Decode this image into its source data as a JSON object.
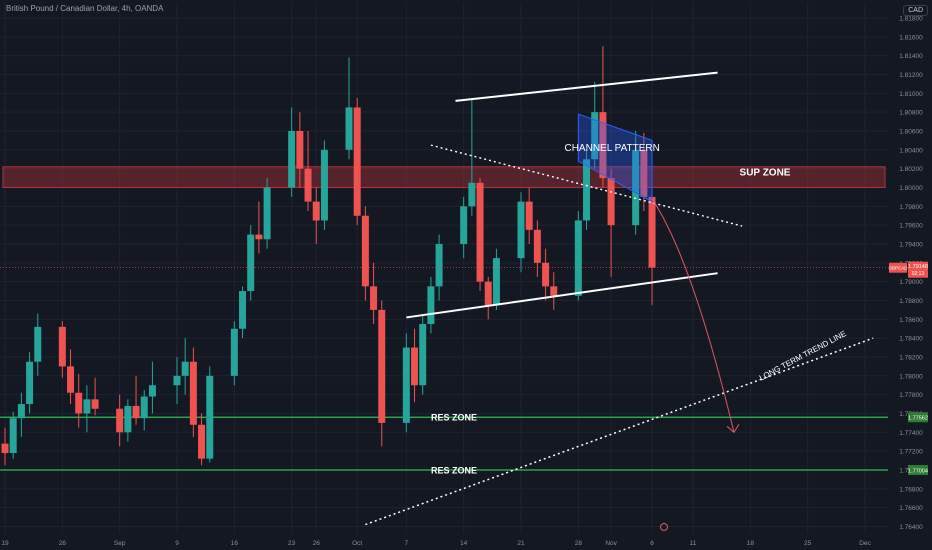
{
  "header": {
    "title": "British Pound / Canadian Dollar, 4h, OANDA",
    "currency_button": "CAD"
  },
  "colors": {
    "background": "#141823",
    "grid": "#1e2330",
    "up": "#26a69a",
    "down": "#ef5350",
    "sup_zone": "#b2323a",
    "res_line": "#2fbf56",
    "annotation": "#ffffff",
    "price_badge": "#ef5350",
    "res_badge": "#2e7d32"
  },
  "chart_data": {
    "type": "candlestick",
    "title": "British Pound / Canadian Dollar, 4h, OANDA",
    "currency": "CAD",
    "y_ticks": [
      "1.81800",
      "1.81600",
      "1.81400",
      "1.81200",
      "1.81000",
      "1.80800",
      "1.80600",
      "1.80400",
      "1.80200",
      "1.80000",
      "1.79800",
      "1.79600",
      "1.79400",
      "1.79200",
      "1.79000",
      "1.78800",
      "1.78600",
      "1.78400",
      "1.78200",
      "1.78000",
      "1.77800",
      "1.77600",
      "1.77400",
      "1.77200",
      "1.77000",
      "1.76800",
      "1.76600",
      "1.76400"
    ],
    "x_ticks": [
      "19",
      "26",
      "Sep",
      "9",
      "16",
      "23",
      "26",
      "Oct",
      "7",
      "14",
      "21",
      "28",
      "Nov",
      "6",
      "11",
      "18",
      "25",
      "Dec"
    ],
    "ylim": [
      1.7632,
      1.8197
    ],
    "current_price": "1.79148",
    "current_price_time": "02:13",
    "gbpcad_badge": "GBPCAD",
    "candles": [
      {
        "d": "2024-08-19",
        "o": 1.7728,
        "h": 1.7745,
        "l": 1.7705,
        "c": 1.7718
      },
      {
        "d": "2024-08-20",
        "o": 1.7718,
        "h": 1.7762,
        "l": 1.7712,
        "c": 1.7755
      },
      {
        "d": "2024-08-21",
        "o": 1.7755,
        "h": 1.7782,
        "l": 1.7735,
        "c": 1.777
      },
      {
        "d": "2024-08-22",
        "o": 1.777,
        "h": 1.7825,
        "l": 1.776,
        "c": 1.7815
      },
      {
        "d": "2024-08-23",
        "o": 1.7815,
        "h": 1.7866,
        "l": 1.78,
        "c": 1.7852
      },
      {
        "d": "2024-08-26",
        "o": 1.7852,
        "h": 1.7858,
        "l": 1.7798,
        "c": 1.781
      },
      {
        "d": "2024-08-27",
        "o": 1.781,
        "h": 1.7828,
        "l": 1.777,
        "c": 1.7782
      },
      {
        "d": "2024-08-28",
        "o": 1.7782,
        "h": 1.7802,
        "l": 1.7745,
        "c": 1.776
      },
      {
        "d": "2024-08-29",
        "o": 1.776,
        "h": 1.779,
        "l": 1.774,
        "c": 1.7775
      },
      {
        "d": "2024-08-30",
        "o": 1.7775,
        "h": 1.7798,
        "l": 1.7758,
        "c": 1.7765
      },
      {
        "d": "2024-09-02",
        "o": 1.7765,
        "h": 1.778,
        "l": 1.7725,
        "c": 1.774
      },
      {
        "d": "2024-09-03",
        "o": 1.774,
        "h": 1.7775,
        "l": 1.773,
        "c": 1.7768
      },
      {
        "d": "2024-09-04",
        "o": 1.7768,
        "h": 1.78,
        "l": 1.7748,
        "c": 1.7755
      },
      {
        "d": "2024-09-05",
        "o": 1.7755,
        "h": 1.7785,
        "l": 1.7742,
        "c": 1.7778
      },
      {
        "d": "2024-09-06",
        "o": 1.7778,
        "h": 1.7815,
        "l": 1.776,
        "c": 1.779
      },
      {
        "d": "2024-09-09",
        "o": 1.779,
        "h": 1.782,
        "l": 1.777,
        "c": 1.78
      },
      {
        "d": "2024-09-10",
        "o": 1.78,
        "h": 1.784,
        "l": 1.778,
        "c": 1.7815
      },
      {
        "d": "2024-09-11",
        "o": 1.7815,
        "h": 1.783,
        "l": 1.7735,
        "c": 1.7748
      },
      {
        "d": "2024-09-12",
        "o": 1.7748,
        "h": 1.776,
        "l": 1.7705,
        "c": 1.7712
      },
      {
        "d": "2024-09-13",
        "o": 1.7712,
        "h": 1.781,
        "l": 1.7708,
        "c": 1.78
      },
      {
        "d": "2024-09-16",
        "o": 1.78,
        "h": 1.7858,
        "l": 1.779,
        "c": 1.785
      },
      {
        "d": "2024-09-17",
        "o": 1.785,
        "h": 1.7895,
        "l": 1.784,
        "c": 1.789
      },
      {
        "d": "2024-09-18",
        "o": 1.789,
        "h": 1.796,
        "l": 1.788,
        "c": 1.795
      },
      {
        "d": "2024-09-19",
        "o": 1.795,
        "h": 1.7985,
        "l": 1.793,
        "c": 1.7945
      },
      {
        "d": "2024-09-20",
        "o": 1.7945,
        "h": 1.801,
        "l": 1.7935,
        "c": 1.8
      },
      {
        "d": "2024-09-23",
        "o": 1.8,
        "h": 1.8085,
        "l": 1.799,
        "c": 1.806
      },
      {
        "d": "2024-09-24",
        "o": 1.806,
        "h": 1.808,
        "l": 1.8,
        "c": 1.802
      },
      {
        "d": "2024-09-25",
        "o": 1.802,
        "h": 1.806,
        "l": 1.7975,
        "c": 1.7985
      },
      {
        "d": "2024-09-26",
        "o": 1.7985,
        "h": 1.8,
        "l": 1.794,
        "c": 1.7965
      },
      {
        "d": "2024-09-27",
        "o": 1.7965,
        "h": 1.805,
        "l": 1.7955,
        "c": 1.804
      },
      {
        "d": "2024-09-30",
        "o": 1.804,
        "h": 1.8138,
        "l": 1.803,
        "c": 1.8085
      },
      {
        "d": "2024-10-01",
        "o": 1.8085,
        "h": 1.8095,
        "l": 1.796,
        "c": 1.797
      },
      {
        "d": "2024-10-02",
        "o": 1.797,
        "h": 1.798,
        "l": 1.788,
        "c": 1.7895
      },
      {
        "d": "2024-10-03",
        "o": 1.7895,
        "h": 1.792,
        "l": 1.7855,
        "c": 1.787
      },
      {
        "d": "2024-10-04",
        "o": 1.787,
        "h": 1.788,
        "l": 1.7725,
        "c": 1.775
      },
      {
        "d": "2024-10-07",
        "o": 1.775,
        "h": 1.7845,
        "l": 1.774,
        "c": 1.783
      },
      {
        "d": "2024-10-08",
        "o": 1.783,
        "h": 1.785,
        "l": 1.7772,
        "c": 1.779
      },
      {
        "d": "2024-10-09",
        "o": 1.779,
        "h": 1.7865,
        "l": 1.778,
        "c": 1.7855
      },
      {
        "d": "2024-10-10",
        "o": 1.7855,
        "h": 1.7905,
        "l": 1.7845,
        "c": 1.7895
      },
      {
        "d": "2024-10-11",
        "o": 1.7895,
        "h": 1.795,
        "l": 1.788,
        "c": 1.794
      },
      {
        "d": "2024-10-14",
        "o": 1.794,
        "h": 1.799,
        "l": 1.7925,
        "c": 1.798
      },
      {
        "d": "2024-10-15",
        "o": 1.798,
        "h": 1.8095,
        "l": 1.797,
        "c": 1.8005
      },
      {
        "d": "2024-10-16",
        "o": 1.8005,
        "h": 1.801,
        "l": 1.789,
        "c": 1.79
      },
      {
        "d": "2024-10-17",
        "o": 1.79,
        "h": 1.7905,
        "l": 1.786,
        "c": 1.7875
      },
      {
        "d": "2024-10-18",
        "o": 1.7875,
        "h": 1.7935,
        "l": 1.787,
        "c": 1.7925
      },
      {
        "d": "2024-10-21",
        "o": 1.7925,
        "h": 1.7995,
        "l": 1.791,
        "c": 1.7985
      },
      {
        "d": "2024-10-22",
        "o": 1.7985,
        "h": 1.8,
        "l": 1.794,
        "c": 1.7955
      },
      {
        "d": "2024-10-23",
        "o": 1.7955,
        "h": 1.7965,
        "l": 1.7905,
        "c": 1.792
      },
      {
        "d": "2024-10-24",
        "o": 1.792,
        "h": 1.7935,
        "l": 1.788,
        "c": 1.7895
      },
      {
        "d": "2024-10-25",
        "o": 1.7895,
        "h": 1.791,
        "l": 1.787,
        "c": 1.7885
      },
      {
        "d": "2024-10-28",
        "o": 1.7885,
        "h": 1.7975,
        "l": 1.788,
        "c": 1.7965
      },
      {
        "d": "2024-10-29",
        "o": 1.7965,
        "h": 1.804,
        "l": 1.7955,
        "c": 1.803
      },
      {
        "d": "2024-10-30",
        "o": 1.803,
        "h": 1.8112,
        "l": 1.802,
        "c": 1.808
      },
      {
        "d": "2024-10-31",
        "o": 1.808,
        "h": 1.815,
        "l": 1.8,
        "c": 1.801
      },
      {
        "d": "2024-11-01",
        "o": 1.801,
        "h": 1.802,
        "l": 1.7905,
        "c": 1.796
      },
      {
        "d": "2024-11-04",
        "o": 1.796,
        "h": 1.806,
        "l": 1.795,
        "c": 1.804
      },
      {
        "d": "2024-11-05",
        "o": 1.804,
        "h": 1.8058,
        "l": 1.7975,
        "c": 1.799
      },
      {
        "d": "2024-11-06",
        "o": 1.799,
        "h": 1.7995,
        "l": 1.7875,
        "c": 1.7915
      }
    ],
    "annotations": [
      {
        "label": "SUP ZONE",
        "type": "zone",
        "y_range": [
          1.8,
          1.8022
        ]
      },
      {
        "label": "RES ZONE",
        "type": "hline",
        "y": 1.7756,
        "badge": "1.77562"
      },
      {
        "label": "RES ZONE",
        "type": "hline",
        "y": 1.77,
        "badge": "1.77004"
      },
      {
        "label": "CHANNEL PATTERN",
        "type": "channel",
        "from": "2024-10-28",
        "to": "2024-11-06",
        "top": [
          1.8078,
          1.805
        ],
        "bottom": [
          1.8028,
          1.7985
        ]
      },
      {
        "label": "LONG TERM TREND LINE",
        "type": "trendline",
        "from": [
          "2024-10-02",
          1.7642
        ],
        "to": [
          "2024-12-03",
          1.784
        ]
      },
      {
        "label": "",
        "type": "trendline",
        "from": [
          "2024-10-07",
          1.7862
        ],
        "to": [
          "2024-11-14",
          1.7909
        ]
      },
      {
        "label": "",
        "type": "trendline",
        "from": [
          "2024-10-13",
          1.8092
        ],
        "to": [
          "2024-11-14",
          1.8122
        ]
      },
      {
        "label": "",
        "type": "trendline",
        "from": [
          "2024-10-10",
          1.8045
        ],
        "to": [
          "2024-11-17",
          1.7959
        ]
      },
      {
        "label": "",
        "type": "arrow",
        "from": [
          "2024-11-06",
          1.7988
        ],
        "to": [
          "2024-11-16",
          1.774
        ]
      }
    ],
    "grid": true,
    "legend": "none"
  }
}
